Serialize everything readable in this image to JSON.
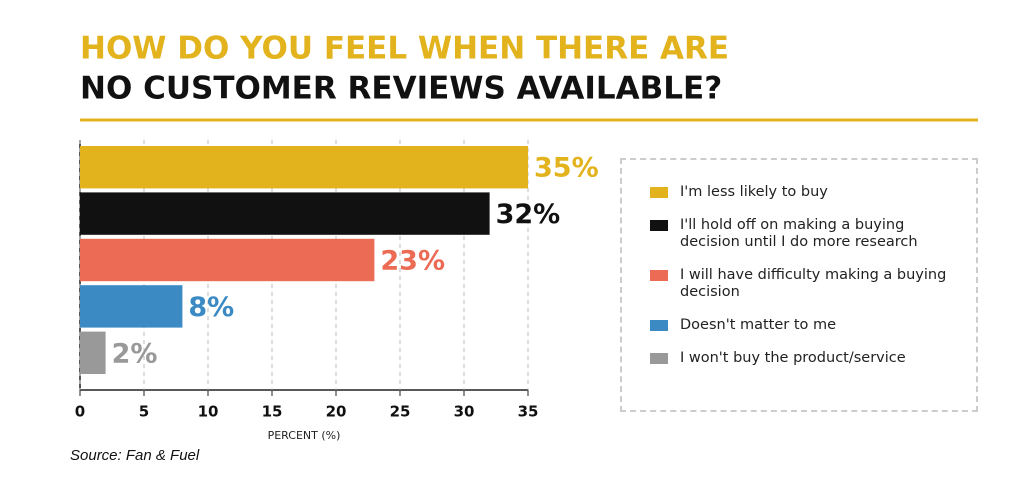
{
  "chart_data": {
    "type": "bar",
    "orientation": "horizontal",
    "title": [
      "HOW DO YOU FEEL WHEN THERE ARE",
      "NO CUSTOMER REVIEWS AVAILABLE?"
    ],
    "categories": [
      "I'm less likely to buy",
      "I'll hold off on making a buying decision until I do more research",
      "I will have difficulty making a buying decision",
      "Doesn't matter to me",
      "I won't buy the product/service"
    ],
    "values": [
      35,
      32,
      23,
      8,
      2
    ],
    "value_labels": [
      "35%",
      "32%",
      "23%",
      "8%",
      "2%"
    ],
    "colors": [
      "#e2b31c",
      "#111111",
      "#ec6b55",
      "#3b8ac4",
      "#999999"
    ],
    "xlabel": "PERCENT (%)",
    "xlim": [
      0,
      35
    ],
    "xticks": [
      0,
      5,
      10,
      15,
      20,
      25,
      30,
      35
    ],
    "grid": true,
    "source": "Source: Fan & Fuel"
  }
}
